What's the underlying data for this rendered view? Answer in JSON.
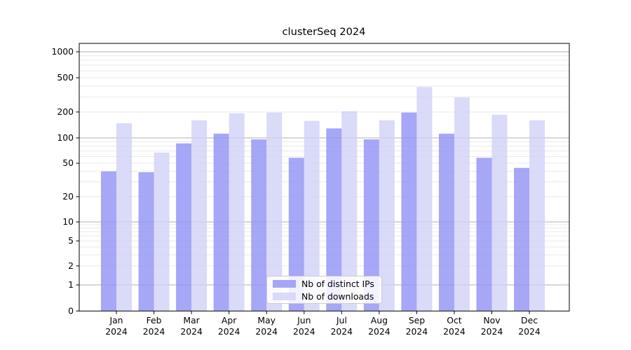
{
  "title": "clusterSeq 2024",
  "chart_data": {
    "type": "bar",
    "title": "clusterSeq 2024",
    "y_scale": "symlog",
    "grid": true,
    "legend_position": "lower center",
    "ylim": [
      0,
      1250
    ],
    "y_ticks": [
      0,
      1,
      2,
      5,
      10,
      20,
      50,
      100,
      200,
      500,
      1000
    ],
    "categories": [
      "Jan 2024",
      "Feb 2024",
      "Mar 2024",
      "Apr 2024",
      "May 2024",
      "Jun 2024",
      "Jul 2024",
      "Aug 2024",
      "Sep 2024",
      "Oct 2024",
      "Nov 2024",
      "Dec 2024"
    ],
    "series": [
      {
        "name": "Nb of distinct IPs",
        "color": "#9191f5",
        "values": [
          40,
          39,
          86,
          112,
          96,
          58,
          129,
          96,
          197,
          112,
          58,
          44
        ]
      },
      {
        "name": "Nb of downloads",
        "color": "#d1d1f8",
        "values": [
          148,
          67,
          160,
          193,
          197,
          158,
          204,
          160,
          390,
          295,
          186,
          160
        ]
      }
    ],
    "bar_opacity": 0.8,
    "colors": {
      "grid_major": "#b2b2b2",
      "grid_minor": "#e9e9e9",
      "spine": "#000000",
      "background": "#ffffff",
      "text": "#000000"
    }
  }
}
